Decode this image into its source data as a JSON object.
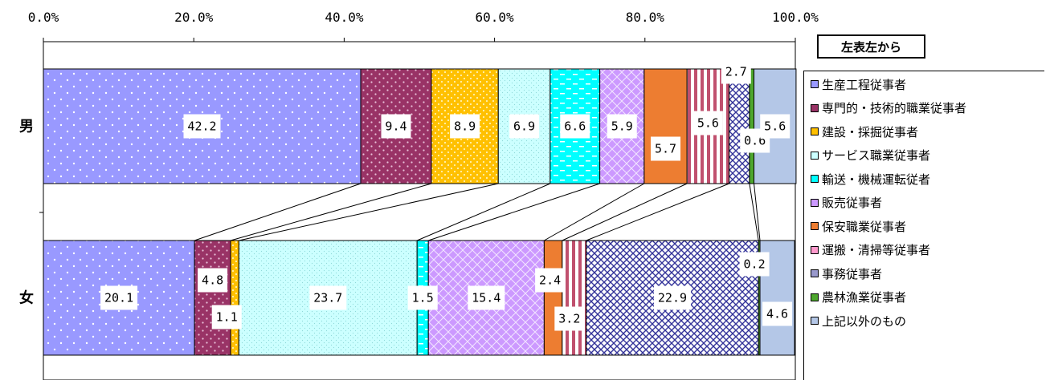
{
  "chart_data": {
    "type": "bar",
    "stacked": "100%",
    "orientation": "horizontal",
    "x_ticks": [
      "0.0%",
      "20.0%",
      "40.0%",
      "60.0%",
      "80.0%",
      "100.0%"
    ],
    "xlim": [
      0,
      100
    ],
    "categories": [
      "男",
      "女"
    ],
    "legend_title": "左表左から",
    "legend_position": "right",
    "series": [
      {
        "name": "生産工程従事者",
        "values": [
          42.2,
          20.1
        ],
        "labels": [
          "42.2",
          "20.1"
        ],
        "color": "#9999ff"
      },
      {
        "name": "専門的・技術的職業従事者",
        "values": [
          9.4,
          4.8
        ],
        "labels": [
          "9.4",
          "4.8"
        ],
        "color": "#993366"
      },
      {
        "name": "建設・採掘従事者",
        "values": [
          8.9,
          1.1
        ],
        "labels": [
          "8.9",
          "1.1"
        ],
        "color": "#ffc000"
      },
      {
        "name": "サービス職業従事者",
        "values": [
          6.9,
          23.7
        ],
        "labels": [
          "6.9",
          "23.7"
        ],
        "color": "#ccffff"
      },
      {
        "name": "輸送・機械運転従者",
        "values": [
          6.6,
          1.5
        ],
        "labels": [
          "6.6",
          "1.5"
        ],
        "color": "#00ffff"
      },
      {
        "name": "販売従事者",
        "values": [
          5.9,
          15.4
        ],
        "labels": [
          "5.9",
          "15.4"
        ],
        "color": "#cc99ff"
      },
      {
        "name": "保安職業従事者",
        "values": [
          5.7,
          2.4
        ],
        "labels": [
          "5.7",
          "2.4"
        ],
        "color": "#ed7d31"
      },
      {
        "name": "運搬・清掃等従事者",
        "values": [
          5.6,
          3.2
        ],
        "labels": [
          "5.6",
          "3.2"
        ],
        "color": "#ff99cc"
      },
      {
        "name": "事務従事者",
        "values": [
          2.7,
          22.9
        ],
        "labels": [
          "2.7",
          "22.9"
        ],
        "color": "#9999cc"
      },
      {
        "name": "農林漁業従事者",
        "values": [
          0.6,
          0.2
        ],
        "labels": [
          "0.6",
          "0.2"
        ],
        "color": "#4ea72e"
      },
      {
        "name": "上記以外のもの",
        "values": [
          5.6,
          4.6
        ],
        "labels": [
          "5.6",
          "4.6"
        ],
        "color": "#b4c7e7"
      }
    ]
  }
}
